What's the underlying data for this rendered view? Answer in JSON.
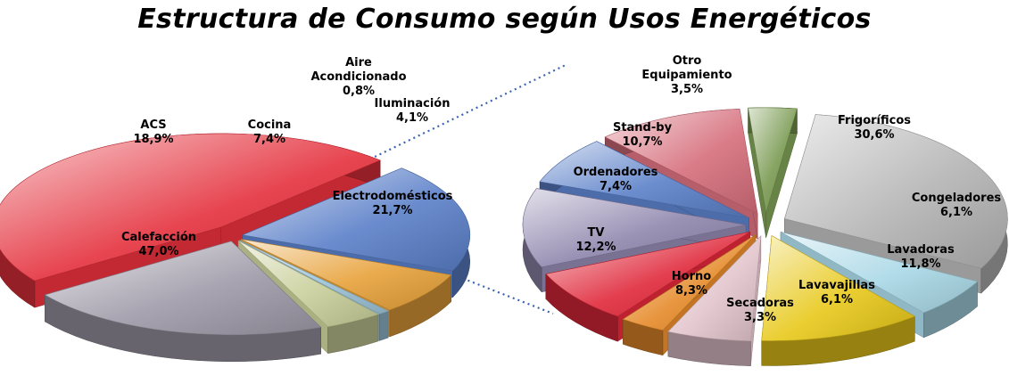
{
  "title": "Estructura de Consumo según Usos Energéticos",
  "chart_data": [
    {
      "type": "pie",
      "slices": [
        {
          "name": "Calefacción",
          "value": 47.0,
          "label": "47,0%",
          "color": "#e4303c"
        },
        {
          "name": "ACS",
          "value": 18.9,
          "label": "18,9%",
          "color": "#5b7fc8"
        },
        {
          "name": "Cocina",
          "value": 7.4,
          "label": "7,4%",
          "color": "#e8a23a"
        },
        {
          "name": "Aire Acondicionado",
          "name_lines": [
            "Aire",
            "Acondicionado"
          ],
          "value": 0.8,
          "label": "0,8%",
          "color": "#9dc4d8"
        },
        {
          "name": "Iluminación",
          "value": 4.1,
          "label": "4,1%",
          "color": "#c9cf9a"
        },
        {
          "name": "Electrodomésticos",
          "value": 21.7,
          "label": "21,7%",
          "color": "#9e9aa8"
        }
      ]
    },
    {
      "type": "pie",
      "slices": [
        {
          "name": "Frigoríficos",
          "value": 30.6,
          "label": "30,6%",
          "color": "#b5b5b5"
        },
        {
          "name": "Congeladores",
          "value": 6.1,
          "label": "6,1%",
          "color": "#a9d8e6"
        },
        {
          "name": "Lavadoras",
          "value": 11.8,
          "label": "11,8%",
          "color": "#e8c81a"
        },
        {
          "name": "Lavavajillas",
          "value": 6.1,
          "label": "6,1%",
          "color": "#e2c4cc"
        },
        {
          "name": "Secadoras",
          "value": 3.3,
          "label": "3,3%",
          "color": "#e58a2a"
        },
        {
          "name": "Horno",
          "value": 8.3,
          "label": "8,3%",
          "color": "#e0283a"
        },
        {
          "name": "TV",
          "value": 12.2,
          "label": "12,2%",
          "color": "#8f86ad"
        },
        {
          "name": "Ordenadores",
          "value": 7.4,
          "label": "7,4%",
          "color": "#5a80c8"
        },
        {
          "name": "Stand-by",
          "value": 10.7,
          "label": "10,7%",
          "color": "#d66e7c"
        },
        {
          "name": "Otro Equipamiento",
          "name_lines": [
            "Otro",
            "Equipamiento"
          ],
          "value": 3.5,
          "label": "3,5%",
          "color": "#7a9a52"
        }
      ]
    }
  ]
}
